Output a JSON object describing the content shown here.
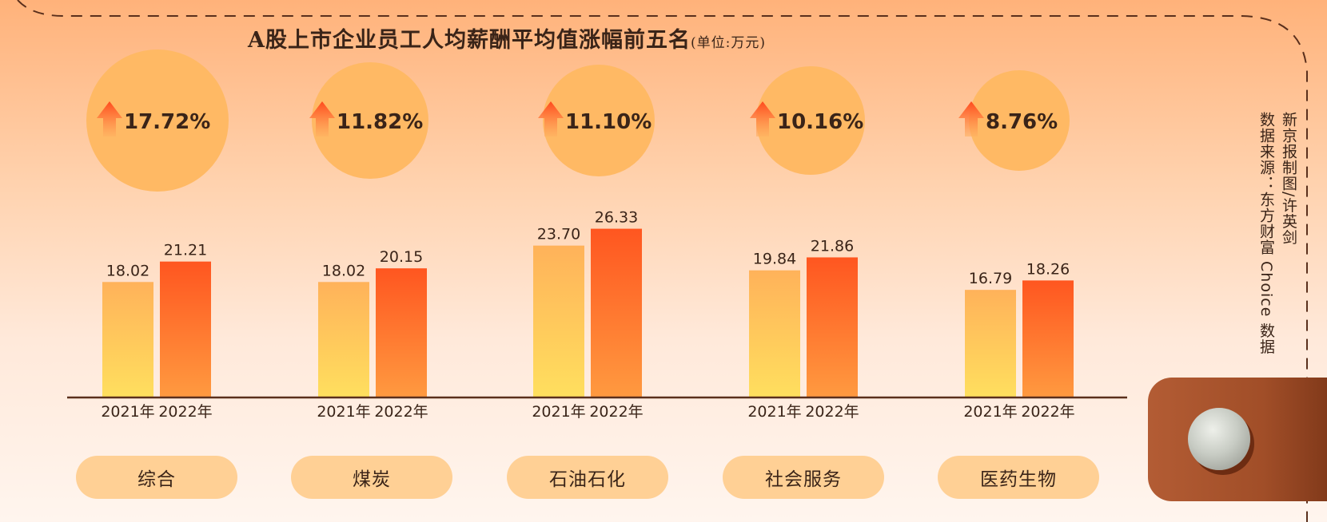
{
  "title": "A股上市企业员工人均薪酬平均值涨幅前五名",
  "unit": "(单位:万元)",
  "credits": {
    "line1": "新京报制图/许英剑",
    "line2": "数据来源：东方财富 Choice 数据"
  },
  "colors": {
    "bar_2021": "#ffc95c",
    "bar_2022": "#ff5c22",
    "bubble": "#ffb964",
    "pill": "#ffd095",
    "text": "#3a2418"
  },
  "icons": {
    "growth": "up-arrow-icon",
    "tab": "knob-icon"
  },
  "chart_data": {
    "type": "bar",
    "categories": [
      "综合",
      "煤炭",
      "石油石化",
      "社会服务",
      "医药生物"
    ],
    "series": [
      {
        "name": "2021年",
        "values": [
          18.02,
          18.02,
          23.7,
          19.84,
          16.79
        ]
      },
      {
        "name": "2022年",
        "values": [
          21.21,
          20.15,
          26.33,
          21.86,
          18.26
        ]
      }
    ],
    "value_labels": {
      "2021年": [
        "18.02",
        "18.02",
        "23.70",
        "19.84",
        "16.79"
      ],
      "2022年": [
        "21.21",
        "20.15",
        "26.33",
        "21.86",
        "18.26"
      ]
    },
    "growth": [
      "17.72%",
      "11.82%",
      "11.10%",
      "10.16%",
      "8.76%"
    ],
    "ylim": [
      0,
      30
    ],
    "grid": false,
    "legend": "none"
  }
}
